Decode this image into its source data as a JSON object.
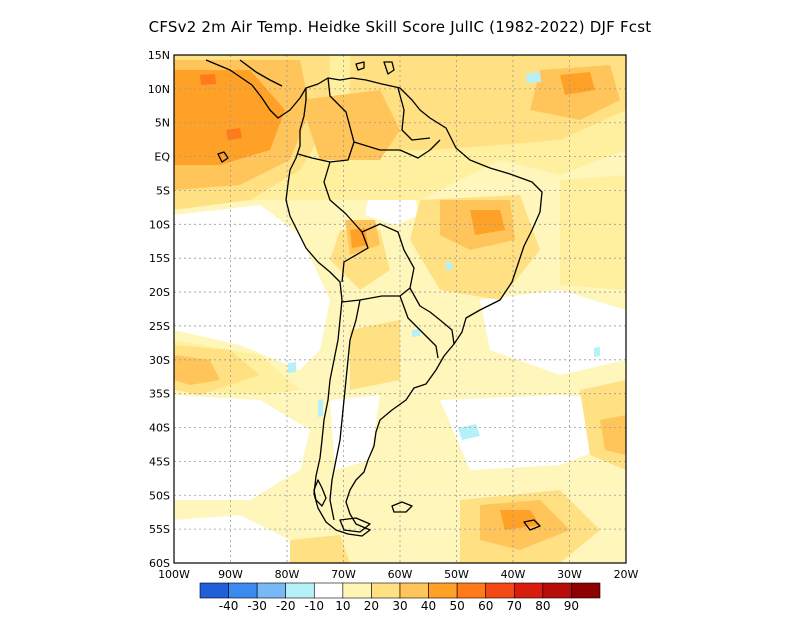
{
  "title": "CFSv2  2m Air Temp. Heidke Skill Score JulIC (1982-2022) DJF Fcst",
  "map": {
    "lat_ticks": [
      "15N",
      "10N",
      "5N",
      "EQ",
      "5S",
      "10S",
      "15S",
      "20S",
      "25S",
      "30S",
      "35S",
      "40S",
      "45S",
      "50S",
      "55S",
      "60S"
    ],
    "lon_ticks": [
      "100W",
      "90W",
      "80W",
      "70W",
      "60W",
      "50W",
      "40W",
      "30W",
      "20W"
    ],
    "extent": {
      "lon_min": -100,
      "lon_max": -20,
      "lat_min": -60,
      "lat_max": 15
    },
    "gridlines": "dotted"
  },
  "colorbar": {
    "labels": [
      "-40",
      "-30",
      "-20",
      "-10",
      "10",
      "20",
      "30",
      "40",
      "50",
      "60",
      "70",
      "80",
      "90"
    ],
    "colors": [
      "#1f5fd9",
      "#3a8af0",
      "#78b9f5",
      "#b6f0f8",
      "#ffffff",
      "#fff5b5",
      "#ffe184",
      "#ffc45a",
      "#ffa127",
      "#ff7a1a",
      "#f44815",
      "#d81d0e",
      "#b70c09",
      "#8d0200"
    ]
  }
}
